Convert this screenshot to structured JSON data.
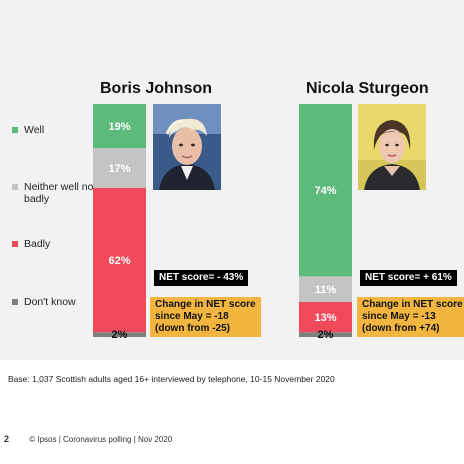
{
  "colors": {
    "well": "#5cba7a",
    "neither": "#c4c4c4",
    "badly": "#f0495a",
    "dont_know": "#7f7f7f",
    "net_box": "#000000",
    "change_box": "#f2b640",
    "background": "#f2f2f2"
  },
  "legend": [
    {
      "key": "well",
      "label": "Well"
    },
    {
      "key": "neither",
      "label": "Neither well nor badly"
    },
    {
      "key": "badly",
      "label": "Badly"
    },
    {
      "key": "dont_know",
      "label": "Don't know"
    }
  ],
  "chart_data": {
    "type": "bar",
    "stacked": true,
    "categories": [
      "Boris Johnson",
      "Nicola Sturgeon"
    ],
    "series": [
      {
        "name": "Well",
        "values": [
          19,
          74
        ]
      },
      {
        "name": "Neither well nor badly",
        "values": [
          17,
          11
        ]
      },
      {
        "name": "Badly",
        "values": [
          62,
          13
        ]
      },
      {
        "name": "Don't know",
        "values": [
          2,
          2
        ]
      }
    ],
    "data_labels": [
      [
        "19%",
        "17%",
        "62%",
        "2%"
      ],
      [
        "74%",
        "11%",
        "13%",
        "2%"
      ]
    ],
    "ylim": [
      0,
      100
    ],
    "grid": false,
    "legend_position": "left"
  },
  "leaders": [
    {
      "name": "Boris Johnson",
      "net_score": "NET score= - 43%",
      "change_lines": [
        "Change in NET score",
        "since May = -18",
        "(down from -25)"
      ],
      "portrait_icon": "boris-johnson-portrait"
    },
    {
      "name": "Nicola Sturgeon",
      "net_score": "NET score= + 61%",
      "change_lines": [
        "Change in NET score",
        "since May = -13",
        "(down from +74)"
      ],
      "portrait_icon": "nicola-sturgeon-portrait"
    }
  ],
  "base_note": "Base: 1,037 Scottish adults aged 16+ interviewed by telephone, 10-15 November 2020",
  "footer": {
    "page_number": "2",
    "text": "© Ipsos | Coronavirus polling | Nov 2020"
  }
}
